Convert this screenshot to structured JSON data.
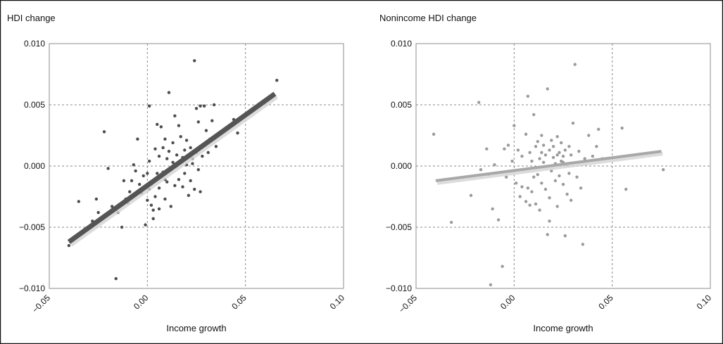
{
  "chart_data": [
    {
      "type": "scatter",
      "title": "HDI change",
      "xlabel": "Income growth",
      "ylabel": "",
      "xlim": [
        -0.05,
        0.1
      ],
      "ylim": [
        -0.01,
        0.01
      ],
      "xticks": [
        "−0.05",
        "0.00",
        "0.05",
        "0.10"
      ],
      "yticks": [
        "0.010",
        "0.005",
        "0.000",
        "−0.005",
        "−0.010"
      ],
      "grid": true,
      "point_color": "#4d4d4d",
      "trend_color": "#555555",
      "trendline": {
        "x": [
          -0.04,
          0.065
        ],
        "y": [
          -0.0062,
          0.0059
        ]
      },
      "points": [
        [
          -0.04,
          -0.0065
        ],
        [
          -0.035,
          -0.0029
        ],
        [
          -0.028,
          -0.0045
        ],
        [
          -0.026,
          -0.0027
        ],
        [
          -0.025,
          -0.0038
        ],
        [
          -0.022,
          0.0028
        ],
        [
          -0.02,
          -0.0002
        ],
        [
          -0.018,
          -0.0033
        ],
        [
          -0.016,
          -0.0092
        ],
        [
          -0.015,
          -0.0038
        ],
        [
          -0.013,
          -0.005
        ],
        [
          -0.012,
          -0.0012
        ],
        [
          -0.011,
          -0.0027
        ],
        [
          -0.01,
          -0.003
        ],
        [
          -0.008,
          -0.0012
        ],
        [
          -0.007,
          0.0001
        ],
        [
          -0.006,
          -0.0004
        ],
        [
          -0.005,
          0.0022
        ],
        [
          -0.004,
          -0.0015
        ],
        [
          -0.003,
          -0.0022
        ],
        [
          -0.002,
          -0.0008
        ],
        [
          -0.001,
          -0.0048
        ],
        [
          0.0,
          -0.0028
        ],
        [
          0.0,
          -0.0006
        ],
        [
          0.001,
          0.0049
        ],
        [
          0.001,
          0.0004
        ],
        [
          0.002,
          -0.0015
        ],
        [
          0.002,
          -0.0032
        ],
        [
          0.003,
          -0.0036
        ],
        [
          0.003,
          -0.0043
        ],
        [
          0.004,
          0.0014
        ],
        [
          0.004,
          -0.0025
        ],
        [
          0.005,
          0.0034
        ],
        [
          0.005,
          -0.0006
        ],
        [
          0.006,
          0.0008
        ],
        [
          0.006,
          -0.0018
        ],
        [
          0.007,
          0.0032
        ],
        [
          0.007,
          -0.0009
        ],
        [
          0.008,
          0.0015
        ],
        [
          0.008,
          -0.0005
        ],
        [
          0.009,
          0.0022
        ],
        [
          0.009,
          -0.0027
        ],
        [
          0.01,
          0.0006
        ],
        [
          0.01,
          -0.0013
        ],
        [
          0.011,
          0.006
        ],
        [
          0.011,
          0.0012
        ],
        [
          0.012,
          -0.0002
        ],
        [
          0.012,
          -0.0033
        ],
        [
          0.013,
          0.0019
        ],
        [
          0.013,
          0.0003
        ],
        [
          0.014,
          0.0041
        ],
        [
          0.014,
          -0.0016
        ],
        [
          0.015,
          0.0009
        ],
        [
          0.015,
          0.0
        ],
        [
          0.016,
          0.0033
        ],
        [
          0.016,
          -0.0011
        ],
        [
          0.017,
          0.0024
        ],
        [
          0.017,
          0.0004
        ],
        [
          0.018,
          -0.0017
        ],
        [
          0.018,
          0.0007
        ],
        [
          0.019,
          0.0013
        ],
        [
          0.019,
          -0.0006
        ],
        [
          0.02,
          0.0021
        ],
        [
          0.02,
          0.0001
        ],
        [
          0.021,
          -0.0024
        ],
        [
          0.021,
          0.0009
        ],
        [
          0.022,
          0.0015
        ],
        [
          0.022,
          -0.0012
        ],
        [
          0.023,
          0.0002
        ],
        [
          0.023,
          0.0006
        ],
        [
          0.024,
          0.0086
        ],
        [
          0.024,
          -0.0019
        ],
        [
          0.025,
          0.0047
        ],
        [
          0.025,
          0.0011
        ],
        [
          0.026,
          0.0036
        ],
        [
          0.026,
          -0.0003
        ],
        [
          0.027,
          0.0049
        ],
        [
          0.027,
          -0.0021
        ],
        [
          0.028,
          0.0017
        ],
        [
          0.028,
          0.0008
        ],
        [
          0.029,
          0.0049
        ],
        [
          0.03,
          0.0029
        ],
        [
          0.031,
          0.0011
        ],
        [
          0.032,
          0.0022
        ],
        [
          0.033,
          0.0037
        ],
        [
          0.034,
          0.005
        ],
        [
          0.035,
          0.0016
        ],
        [
          0.044,
          0.0038
        ],
        [
          0.046,
          0.0027
        ],
        [
          0.049,
          0.0041
        ],
        [
          0.066,
          0.007
        ],
        [
          -0.009,
          -0.0021
        ],
        [
          0.001,
          -0.0019
        ],
        [
          0.006,
          -0.0035
        ],
        [
          0.009,
          -0.0011
        ]
      ]
    },
    {
      "type": "scatter",
      "title": "Nonincome HDI change",
      "xlabel": "Income growth",
      "ylabel": "",
      "xlim": [
        -0.05,
        0.1
      ],
      "ylim": [
        -0.01,
        0.01
      ],
      "xticks": [
        "−0.05",
        "0.00",
        "0.05",
        "0.10"
      ],
      "yticks": [
        "0.010",
        "0.005",
        "0.000",
        "−0.005",
        "−0.010"
      ],
      "grid": true,
      "point_color": "#9b9b9b",
      "trend_color": "#a8a8a8",
      "trendline": {
        "x": [
          -0.04,
          0.075
        ],
        "y": [
          -0.0012,
          0.0012
        ]
      },
      "points": [
        [
          -0.041,
          0.0026
        ],
        [
          -0.032,
          -0.0046
        ],
        [
          -0.022,
          -0.0024
        ],
        [
          -0.018,
          0.0052
        ],
        [
          -0.017,
          -0.0003
        ],
        [
          -0.014,
          0.0014
        ],
        [
          -0.013,
          -0.0007
        ],
        [
          -0.012,
          -0.0097
        ],
        [
          -0.011,
          -0.0035
        ],
        [
          -0.01,
          0.0001
        ],
        [
          -0.008,
          -0.0044
        ],
        [
          -0.006,
          -0.0082
        ],
        [
          -0.005,
          0.0014
        ],
        [
          -0.004,
          -0.0009
        ],
        [
          -0.003,
          0.0017
        ],
        [
          -0.001,
          0.0004
        ],
        [
          0.0,
          0.0033
        ],
        [
          0.001,
          -0.0014
        ],
        [
          0.002,
          0.0013
        ],
        [
          0.003,
          -0.0025
        ],
        [
          0.004,
          -0.0017
        ],
        [
          0.004,
          0.0008
        ],
        [
          0.005,
          -0.0003
        ],
        [
          0.006,
          -0.0029
        ],
        [
          0.006,
          0.0026
        ],
        [
          0.007,
          0.0057
        ],
        [
          0.007,
          -0.0018
        ],
        [
          0.008,
          0.0011
        ],
        [
          0.008,
          -0.0032
        ],
        [
          0.009,
          0.0004
        ],
        [
          0.009,
          -0.0021
        ],
        [
          0.01,
          0.0042
        ],
        [
          0.01,
          -0.0009
        ],
        [
          0.011,
          0.0016
        ],
        [
          0.011,
          -0.0031
        ],
        [
          0.012,
          0.002
        ],
        [
          0.012,
          -0.0007
        ],
        [
          0.013,
          0.0006
        ],
        [
          0.013,
          -0.0036
        ],
        [
          0.014,
          0.0025
        ],
        [
          0.014,
          -0.0014
        ],
        [
          0.015,
          0.0003
        ],
        [
          0.015,
          0.0017
        ],
        [
          0.016,
          -0.0019
        ],
        [
          0.016,
          0.0009
        ],
        [
          0.017,
          0.0063
        ],
        [
          0.017,
          -0.0056
        ],
        [
          0.018,
          0.0013
        ],
        [
          0.018,
          -0.0026
        ],
        [
          0.019,
          0.0021
        ],
        [
          0.019,
          -0.0004
        ],
        [
          0.02,
          0.0007
        ],
        [
          0.02,
          0.0016
        ],
        [
          0.021,
          -0.0012
        ],
        [
          0.021,
          0.0002
        ],
        [
          0.022,
          0.0024
        ],
        [
          0.022,
          -0.0033
        ],
        [
          0.023,
          0.0011
        ],
        [
          0.023,
          -0.0008
        ],
        [
          0.024,
          0.0004
        ],
        [
          0.024,
          0.0019
        ],
        [
          0.025,
          -0.0015
        ],
        [
          0.025,
          0.0008
        ],
        [
          0.026,
          -0.0057
        ],
        [
          0.026,
          0.0013
        ],
        [
          0.027,
          0.0001
        ],
        [
          0.027,
          -0.0023
        ],
        [
          0.028,
          0.0016
        ],
        [
          0.028,
          -0.0006
        ],
        [
          0.029,
          0.0009
        ],
        [
          0.029,
          -0.0028
        ],
        [
          0.03,
          0.0035
        ],
        [
          0.031,
          0.0083
        ],
        [
          0.032,
          -0.0009
        ],
        [
          0.033,
          0.0012
        ],
        [
          0.034,
          -0.0018
        ],
        [
          0.035,
          -0.0064
        ],
        [
          0.036,
          0.0006
        ],
        [
          0.038,
          0.0025
        ],
        [
          0.04,
          0.0008
        ],
        [
          0.042,
          0.0016
        ],
        [
          0.043,
          0.003
        ],
        [
          0.045,
          0.0006
        ],
        [
          0.055,
          0.0031
        ],
        [
          0.057,
          -0.0019
        ],
        [
          0.076,
          -0.0003
        ],
        [
          0.018,
          -0.0045
        ],
        [
          0.014,
          0.0011
        ],
        [
          0.022,
          0.0009
        ],
        [
          0.025,
          0.0003
        ]
      ]
    }
  ]
}
